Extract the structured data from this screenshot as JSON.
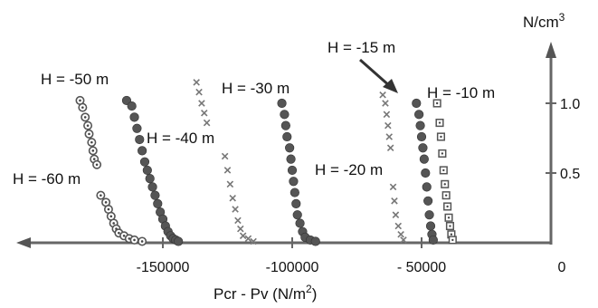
{
  "chart_data": {
    "type": "scatter",
    "xlabel": "Pcr - Pv (N/m",
    "xlabel_sup": "2",
    "xlabel_end": ")",
    "ylabel": "N/cm",
    "ylabel_sup": "3",
    "xlim": [
      -190000,
      10000
    ],
    "ylim": [
      0,
      1.3
    ],
    "x_ticks": [
      {
        "value": -150000,
        "label": "-150000"
      },
      {
        "value": -100000,
        "label": "-100000"
      },
      {
        "value": -50000,
        "label": "- 50000"
      },
      {
        "value": 0,
        "label": "0"
      }
    ],
    "y_ticks": [
      {
        "value": 0.5,
        "label": "0.5"
      },
      {
        "value": 1.0,
        "label": "1.0"
      }
    ],
    "series": [
      {
        "name": "H = -60 m",
        "marker": "circle-dot",
        "x": [
          -182000,
          -181000,
          -180000,
          -179000,
          -178500,
          -177500,
          -177000,
          -176500,
          -175500,
          -174000,
          -172000,
          -171000,
          -170000,
          -169000,
          -168000,
          -167000,
          -165000,
          -163000,
          -161000,
          -158000
        ],
        "y": [
          1.02,
          0.97,
          0.9,
          0.84,
          0.78,
          0.72,
          0.66,
          0.6,
          0.56,
          0.34,
          0.29,
          0.24,
          0.19,
          0.14,
          0.1,
          0.07,
          0.05,
          0.03,
          0.02,
          0.01
        ]
      },
      {
        "name": "H = -50 m",
        "marker": "filled-circle",
        "x": [
          -164000,
          -162000,
          -161000,
          -160000,
          -159000,
          -158000,
          -157000,
          -156000,
          -155000,
          -154000,
          -153000,
          -152000,
          -151000,
          -150000,
          -149000,
          -148000,
          -147000,
          -146000,
          -145000,
          -144000
        ],
        "y": [
          1.02,
          0.98,
          0.9,
          0.82,
          0.74,
          0.66,
          0.58,
          0.52,
          0.46,
          0.4,
          0.34,
          0.28,
          0.22,
          0.17,
          0.12,
          0.08,
          0.05,
          0.03,
          0.02,
          0.01
        ]
      },
      {
        "name": "H = -40 m",
        "marker": "cross",
        "x": [
          -137000,
          -136000,
          -135000,
          -134000,
          -133000,
          -126000,
          -125000,
          -124000,
          -123000,
          -122000,
          -121000,
          -120000,
          -119000,
          -117000,
          -115000
        ],
        "y": [
          1.15,
          1.08,
          1.0,
          0.93,
          0.86,
          0.62,
          0.52,
          0.42,
          0.32,
          0.24,
          0.16,
          0.1,
          0.05,
          0.03,
          0.01
        ]
      },
      {
        "name": "H = -30 m",
        "marker": "filled-circle",
        "x": [
          -104000,
          -103000,
          -102500,
          -102000,
          -101000,
          -100500,
          -100000,
          -99500,
          -99000,
          -98500,
          -98000,
          -97000,
          -96000,
          -95000,
          -93000,
          -91000
        ],
        "y": [
          1.0,
          0.92,
          0.84,
          0.76,
          0.68,
          0.6,
          0.52,
          0.44,
          0.36,
          0.28,
          0.2,
          0.14,
          0.08,
          0.04,
          0.02,
          0.01
        ]
      },
      {
        "name": "H = -20 m",
        "marker": "cross",
        "x": [
          -65000,
          -64000,
          -63500,
          -63000,
          -62500,
          -62000,
          -61000,
          -60500,
          -60000,
          -59000,
          -58000,
          -57000
        ],
        "y": [
          1.06,
          1.0,
          0.92,
          0.84,
          0.76,
          0.68,
          0.4,
          0.3,
          0.2,
          0.12,
          0.06,
          0.02
        ]
      },
      {
        "name": "H = -15 m",
        "marker": "filled-circle",
        "x": [
          -52000,
          -51000,
          -50500,
          -50000,
          -49500,
          -49000,
          -48500,
          -48000,
          -47500,
          -47000,
          -46500,
          -46000,
          -45500
        ],
        "y": [
          1.0,
          0.92,
          0.84,
          0.76,
          0.68,
          0.6,
          0.5,
          0.4,
          0.3,
          0.2,
          0.12,
          0.06,
          0.02
        ]
      },
      {
        "name": "H = -10 m",
        "marker": "square-dot",
        "x": [
          -44000,
          -43000,
          -42500,
          -42000,
          -41500,
          -41000,
          -40500,
          -40000,
          -39500,
          -39000,
          -38500,
          -38000
        ],
        "y": [
          1.0,
          0.86,
          0.76,
          0.64,
          0.52,
          0.42,
          0.34,
          0.26,
          0.18,
          0.12,
          0.06,
          0.02
        ]
      }
    ],
    "annotations": [
      {
        "text": "H = -50 m"
      },
      {
        "text": "H = -60 m"
      },
      {
        "text": "H = -40 m"
      },
      {
        "text": "H = -30 m"
      },
      {
        "text": "H = -15 m"
      },
      {
        "text": "H = -10 m"
      },
      {
        "text": "H = -20 m"
      }
    ]
  }
}
